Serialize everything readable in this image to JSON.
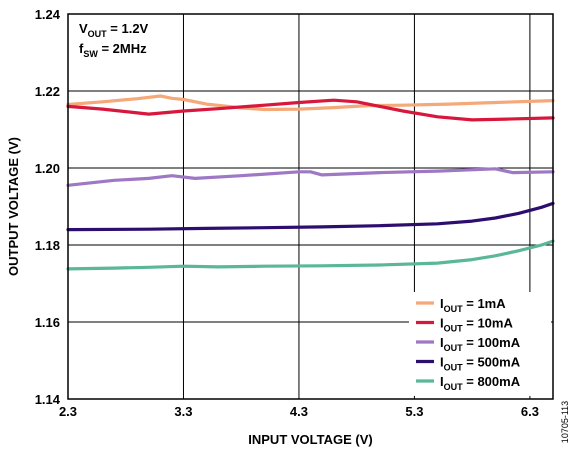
{
  "chart_data": {
    "type": "line",
    "xlabel": "INPUT VOLTAGE (V)",
    "ylabel": "OUTPUT VOLTAGE (V)",
    "xlim": [
      2.3,
      6.5
    ],
    "ylim": [
      1.14,
      1.24
    ],
    "xticks": [
      "2.3",
      "3.3",
      "4.3",
      "5.3",
      "6.3"
    ],
    "yticks": [
      "1.14",
      "1.16",
      "1.18",
      "1.20",
      "1.22",
      "1.24"
    ],
    "grid": true,
    "legend_position": "bottom-right",
    "conditions": [
      {
        "main": "V",
        "sub": "OUT",
        "rest": " = 1.2V"
      },
      {
        "main": "f",
        "sub": "SW",
        "rest": " = 2MHz"
      }
    ],
    "figure_number": "10705-113",
    "series": [
      {
        "name": "1mA",
        "legend_main": "I",
        "legend_sub": "OUT",
        "legend_rest": " = 1mA",
        "color": "#F5A878",
        "x": [
          2.3,
          2.6,
          2.9,
          3.1,
          3.2,
          3.3,
          3.5,
          3.8,
          4.0,
          4.3,
          4.6,
          4.9,
          5.2,
          5.6,
          6.0,
          6.5
        ],
        "y": [
          1.2165,
          1.2172,
          1.218,
          1.2187,
          1.2181,
          1.2178,
          1.2166,
          1.2156,
          1.2152,
          1.2153,
          1.2157,
          1.2162,
          1.2163,
          1.2166,
          1.217,
          1.2175
        ]
      },
      {
        "name": "10mA",
        "legend_main": "I",
        "legend_sub": "OUT",
        "legend_rest": " = 10mA",
        "color": "#D8173C",
        "x": [
          2.3,
          2.6,
          2.9,
          3.0,
          3.3,
          3.6,
          4.0,
          4.3,
          4.6,
          4.8,
          5.0,
          5.2,
          5.5,
          5.8,
          6.1,
          6.5
        ],
        "y": [
          1.216,
          1.2153,
          1.2143,
          1.214,
          1.2148,
          1.2154,
          1.2163,
          1.217,
          1.2176,
          1.2172,
          1.216,
          1.2148,
          1.2133,
          1.2125,
          1.2127,
          1.213
        ]
      },
      {
        "name": "100mA",
        "legend_main": "I",
        "legend_sub": "OUT",
        "legend_rest": " = 100mA",
        "color": "#9E78C4",
        "x": [
          2.3,
          2.7,
          3.0,
          3.2,
          3.4,
          3.8,
          4.3,
          4.4,
          4.5,
          5.0,
          5.5,
          6.0,
          6.15,
          6.5
        ],
        "y": [
          1.1955,
          1.1968,
          1.1973,
          1.198,
          1.1973,
          1.198,
          1.199,
          1.199,
          1.1982,
          1.1988,
          1.1992,
          1.1998,
          1.1988,
          1.199
        ]
      },
      {
        "name": "500mA",
        "legend_main": "I",
        "legend_sub": "OUT",
        "legend_rest": " = 500mA",
        "color": "#2D0E6E",
        "x": [
          2.3,
          3.0,
          3.5,
          4.0,
          4.5,
          5.0,
          5.5,
          5.8,
          6.0,
          6.2,
          6.4,
          6.5
        ],
        "y": [
          1.184,
          1.1841,
          1.1843,
          1.1845,
          1.1847,
          1.185,
          1.1855,
          1.1862,
          1.187,
          1.1882,
          1.1898,
          1.1908
        ]
      },
      {
        "name": "800mA",
        "legend_main": "I",
        "legend_sub": "OUT",
        "legend_rest": " = 800mA",
        "color": "#5AB896",
        "x": [
          2.3,
          2.7,
          3.0,
          3.3,
          3.6,
          4.0,
          4.5,
          5.0,
          5.5,
          5.8,
          6.0,
          6.2,
          6.4,
          6.5
        ],
        "y": [
          1.1738,
          1.174,
          1.1742,
          1.1745,
          1.1743,
          1.1745,
          1.1746,
          1.1748,
          1.1753,
          1.1762,
          1.1772,
          1.1785,
          1.18,
          1.181
        ]
      }
    ]
  }
}
